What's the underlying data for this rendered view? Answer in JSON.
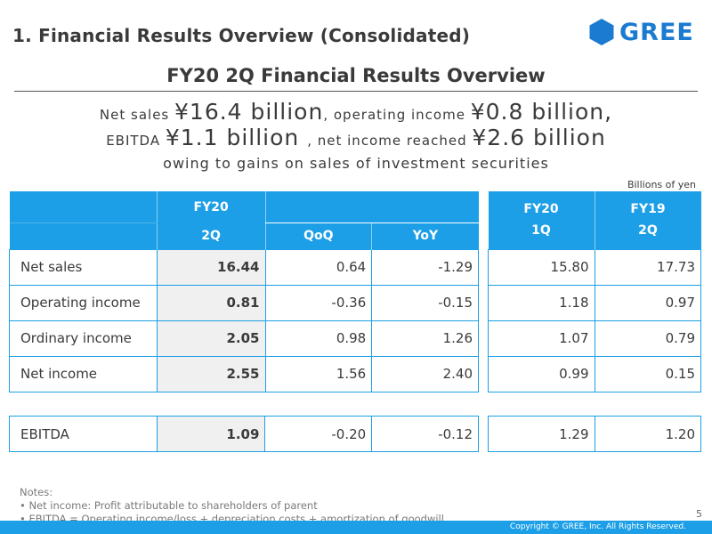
{
  "header": {
    "section_title": "1. Financial Results Overview (Consolidated)",
    "logo_text": "GREE",
    "brand_color": "#1a7bd1",
    "accent_color": "#1c9fe6"
  },
  "slide_title": "FY20 2Q Financial Results Overview",
  "summary": {
    "l1a": "Net sales ",
    "l1b": "¥16.4 billion",
    "l1c": ", operating income ",
    "l1d": "¥0.8 billion",
    "l1e": ",",
    "l2a": "EBITDA ",
    "l2b": "¥1.1 billion ",
    "l2c": ", net income reached ",
    "l2d": "¥2.6 billion",
    "l3": "owing to gains on sales of investment securities"
  },
  "unit_label": "Billions of yen",
  "left_table": {
    "h_fy20": "FY20",
    "h_2q": "2Q",
    "h_qoq": "QoQ",
    "h_yoy": "YoY"
  },
  "right_table": {
    "h_col1": "FY20\n1Q",
    "h_col2": "FY19\n2Q"
  },
  "rows": [
    {
      "label": "Net sales",
      "current": "16.44",
      "qoq": "0.64",
      "yoy": "-1.29",
      "fy20_1q": "15.80",
      "fy19_2q": "17.73"
    },
    {
      "label": "Operating income",
      "current": "0.81",
      "qoq": "-0.36",
      "yoy": "-0.15",
      "fy20_1q": "1.18",
      "fy19_2q": "0.97"
    },
    {
      "label": "Ordinary income",
      "current": "2.05",
      "qoq": "0.98",
      "yoy": "1.26",
      "fy20_1q": "1.07",
      "fy19_2q": "0.79"
    },
    {
      "label": "Net income",
      "current": "2.55",
      "qoq": "1.56",
      "yoy": "2.40",
      "fy20_1q": "0.99",
      "fy19_2q": "0.15"
    }
  ],
  "ebitda_row": {
    "label": "EBITDA",
    "current": "1.09",
    "qoq": "-0.20",
    "yoy": "-0.12",
    "fy20_1q": "1.29",
    "fy19_2q": "1.20"
  },
  "notes": {
    "title": "Notes:",
    "n1": "• Net income: Profit attributable to shareholders of parent",
    "n2": "• EBITDA = Operating income/loss + depreciation costs + amortization of goodwill"
  },
  "page_number": "5",
  "copyright": "Copyright © GREE, Inc. All Rights Reserved."
}
